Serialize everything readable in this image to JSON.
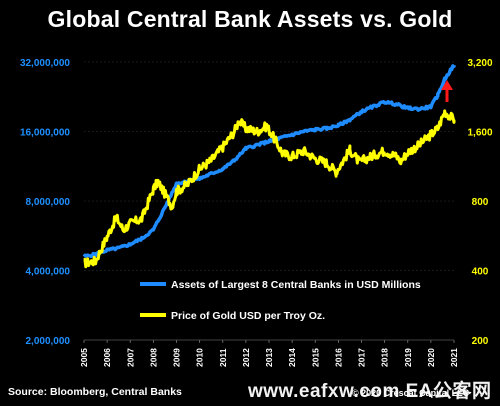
{
  "chart_data": {
    "type": "line",
    "title": "Global Central Bank Assets vs. Gold",
    "x_ticks": [
      "2005",
      "2006",
      "2007",
      "2008",
      "2009",
      "2010",
      "2011",
      "2012",
      "2013",
      "2014",
      "2015",
      "2016",
      "2017",
      "2018",
      "2019",
      "2020",
      "2021"
    ],
    "y_left": {
      "scale": "log",
      "ticks": [
        "32,000,000",
        "16,000,000",
        "8,000,000",
        "4,000,000",
        "2,000,000"
      ],
      "ylim": [
        2000000,
        32000000
      ],
      "color": "#1e90ff"
    },
    "y_right": {
      "scale": "log",
      "ticks": [
        "3,200",
        "1,600",
        "800",
        "400",
        "200"
      ],
      "ylim": [
        200,
        3200
      ],
      "color": "#ffff00"
    },
    "series": [
      {
        "name": "Assets of Largest 8 Central Banks in USD Millions",
        "axis": "left",
        "color": "#1e8cff",
        "x": [
          2005.0,
          2005.5,
          2006.0,
          2006.5,
          2007.0,
          2007.5,
          2008.0,
          2008.5,
          2009.0,
          2009.5,
          2010.0,
          2010.5,
          2011.0,
          2011.5,
          2012.0,
          2012.5,
          2013.0,
          2013.5,
          2014.0,
          2014.5,
          2015.0,
          2015.5,
          2016.0,
          2016.5,
          2017.0,
          2017.5,
          2018.0,
          2018.5,
          2019.0,
          2019.5,
          2020.0,
          2020.3,
          2020.6,
          2021.0
        ],
        "values": [
          4600000,
          4700000,
          4900000,
          5000000,
          5200000,
          5500000,
          6000000,
          7500000,
          9500000,
          9800000,
          10000000,
          10500000,
          11000000,
          12000000,
          13500000,
          14000000,
          14500000,
          15000000,
          15500000,
          16000000,
          16300000,
          16500000,
          17000000,
          18000000,
          19500000,
          20500000,
          21500000,
          21000000,
          20200000,
          20000000,
          20500000,
          23000000,
          27000000,
          31000000
        ]
      },
      {
        "name": "Price of Gold USD per Troy Oz.",
        "axis": "right",
        "color": "#ffff00",
        "x": [
          2005.0,
          2005.5,
          2006.0,
          2006.4,
          2006.7,
          2007.0,
          2007.5,
          2008.0,
          2008.2,
          2008.8,
          2009.0,
          2009.5,
          2010.0,
          2010.5,
          2011.0,
          2011.5,
          2011.7,
          2012.0,
          2012.5,
          2012.9,
          2013.3,
          2013.6,
          2014.0,
          2014.5,
          2015.0,
          2015.5,
          2015.9,
          2016.5,
          2016.9,
          2017.5,
          2018.0,
          2018.5,
          2018.7,
          2019.0,
          2019.5,
          2020.0,
          2020.3,
          2020.6,
          2021.0
        ],
        "values": [
          430,
          440,
          560,
          680,
          600,
          640,
          670,
          900,
          970,
          760,
          880,
          950,
          1100,
          1200,
          1370,
          1600,
          1780,
          1650,
          1600,
          1690,
          1450,
          1280,
          1250,
          1320,
          1220,
          1170,
          1070,
          1330,
          1180,
          1260,
          1320,
          1250,
          1190,
          1300,
          1400,
          1550,
          1650,
          1950,
          1800
        ]
      }
    ],
    "legend": [
      "Assets of Largest 8 Central Banks in USD Millions",
      "Price of Gold USD per Troy Oz."
    ],
    "annotation": "red up arrow"
  },
  "source": "Source: Bloomberg, Central Banks",
  "copyright": "© 2020 Crescat Capital LLC",
  "watermark": "www.eafxw.com  EA公客网"
}
